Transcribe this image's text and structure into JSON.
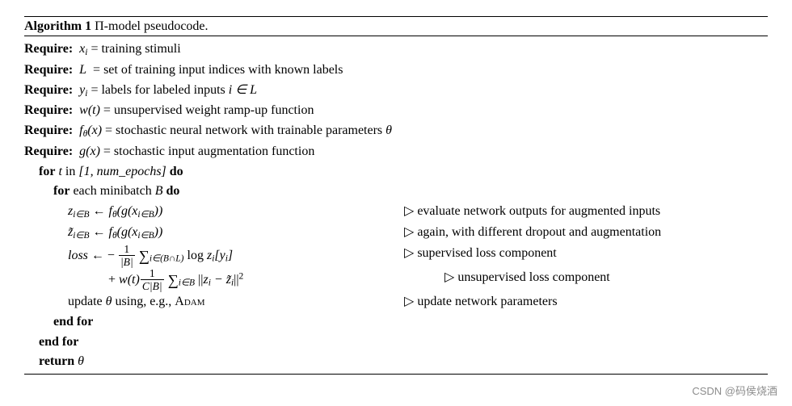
{
  "algo": {
    "number": "Algorithm 1",
    "title_tail": "-model pseudocode.",
    "pi": "Π"
  },
  "req": {
    "kw": "Require:",
    "r1a": "x",
    "r1b": " = training stimuli",
    "r2a": "L",
    "r2b": " = set of training input indices with known labels",
    "r3a": "y",
    "r3b": " = labels for labeled inputs ",
    "r4a": "w(t)",
    "r4b": " = unsupervised weight ramp-up function",
    "r5a": "f",
    "r5b": "(x)",
    "r5c": " = stochastic neural network with trainable parameters ",
    "r6a": "g(x)",
    "r6b": " = stochastic input augmentation function"
  },
  "kw": {
    "for": "for",
    "do": "do",
    "in": "in",
    "endfor": "end for",
    "return": "return"
  },
  "body": {
    "t": "t",
    "range": "[1, num_epochs]",
    "minibatch": " each minibatch ",
    "B": "B",
    "z": "z",
    "ztilde": "z̃",
    "arrow": " ← ",
    "f": "f",
    "g": "(g(x",
    "loss": "loss",
    "minus": " ← − ",
    "plus": "+ ",
    "wt": "w(t)",
    "log": " log ",
    "norm_open": "||",
    "norm_close": "||",
    "update_text": "update ",
    "update_tail": " using, e.g., ",
    "adam": "Adam",
    "theta": "θ",
    "iinB": "i∈B",
    "iinBL": "i∈(B∩L)",
    "iL": "i ∈ L",
    "i": "i",
    "sq": "2",
    "yi_open": "[y",
    "yi_close": "]",
    "close_pp": "))",
    "ziminus": " − z̃",
    "frac1_num": "1",
    "frac1_den": "|B|",
    "frac2_num": "1",
    "frac2_den": "C|B|",
    "sum": "∑"
  },
  "comments": {
    "tri": "▷",
    "c1": " evaluate network outputs for augmented inputs",
    "c2": " again, with different dropout and augmentation",
    "c3": " supervised loss component",
    "c4": " unsupervised loss component",
    "c5": " update network parameters"
  },
  "watermark": "CSDN @码侯烧酒"
}
